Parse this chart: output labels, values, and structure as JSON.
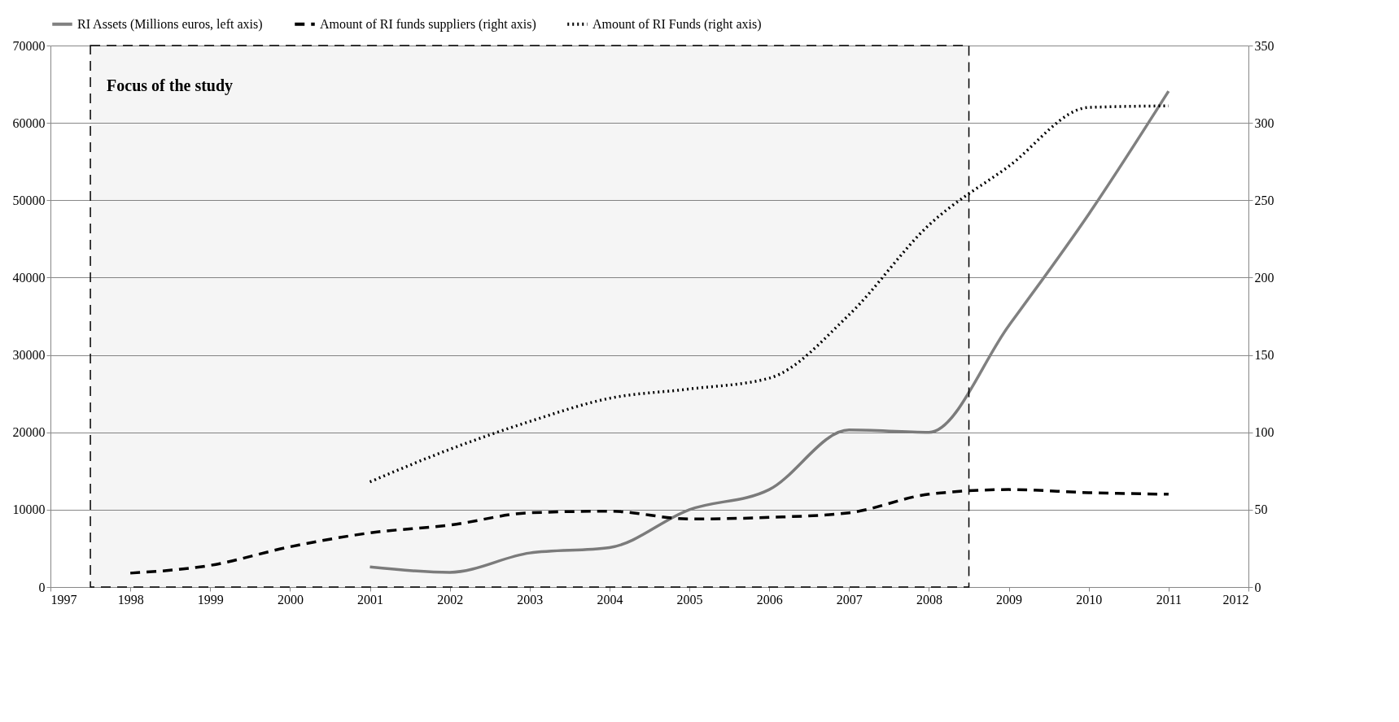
{
  "chart_data": {
    "type": "line",
    "x": [
      1998,
      1999,
      2000,
      2001,
      2002,
      2003,
      2004,
      2005,
      2006,
      2007,
      2008,
      2009,
      2010,
      2011
    ],
    "series": [
      {
        "name": "RI Assets (Millions euros, left axis)",
        "color": "#808080",
        "line_style": "solid",
        "values": [
          null,
          null,
          null,
          2600,
          1900,
          4400,
          5100,
          10000,
          12600,
          20300,
          20000,
          33800,
          48200,
          64100
        ]
      },
      {
        "name": "Amount of RI funds suppliers (right axis)",
        "color": "#000000",
        "line_style": "dashed",
        "axis": "y2",
        "values": [
          9,
          14,
          26,
          35,
          40,
          48,
          49,
          44,
          45,
          48,
          60,
          63,
          61,
          60
        ]
      },
      {
        "name": "Amount of RI Funds (right axis)",
        "color": "#000000",
        "line_style": "dotted",
        "axis": "y2",
        "values": [
          null,
          null,
          null,
          68,
          89,
          107,
          122,
          128,
          135,
          176,
          234,
          272,
          310,
          311
        ]
      }
    ],
    "xlim": [
      1997,
      2012
    ],
    "xticks": [
      1997,
      1998,
      1999,
      2000,
      2001,
      2002,
      2003,
      2004,
      2005,
      2006,
      2007,
      2008,
      2009,
      2010,
      2011,
      2012
    ],
    "ylim": [
      0,
      70000
    ],
    "yticks": [
      0,
      10000,
      20000,
      30000,
      40000,
      50000,
      60000,
      70000
    ],
    "y2lim": [
      0,
      350
    ],
    "y2ticks": [
      0,
      50,
      100,
      150,
      200,
      250,
      300,
      350
    ],
    "bands": [
      {
        "axis": "x",
        "from": 1997.5,
        "to": 2008.5,
        "label": "Focus of the study"
      }
    ],
    "grid": "y",
    "legend": "top",
    "marker": "none"
  }
}
